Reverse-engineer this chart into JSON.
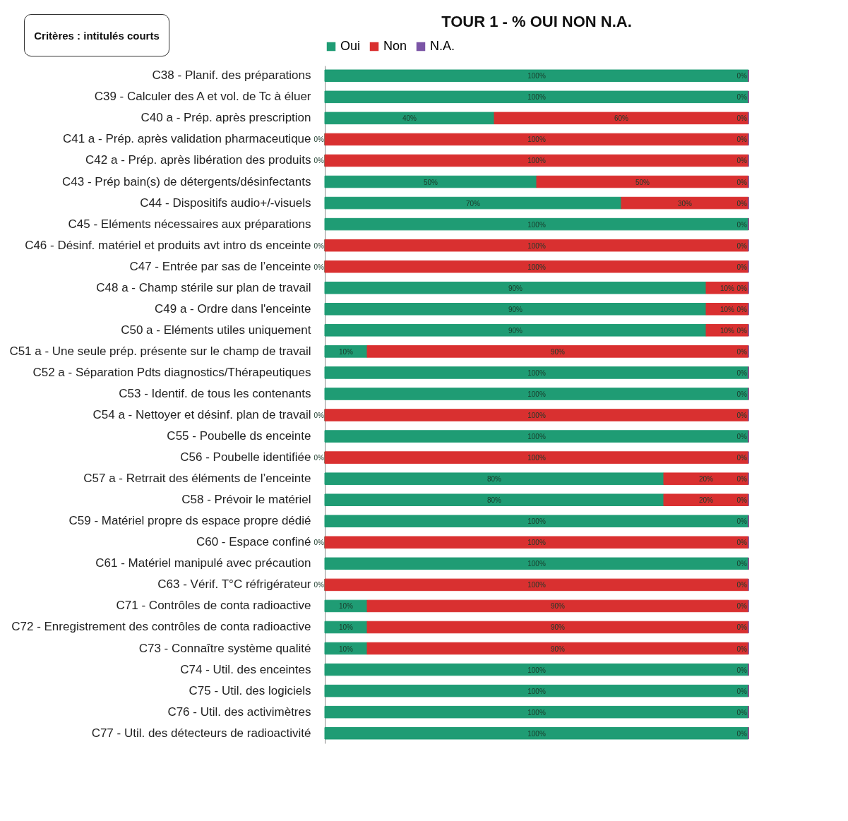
{
  "chart_data": {
    "type": "bar",
    "orientation": "horizontal",
    "stacked": true,
    "title": "TOUR 1  - % OUI NON N.A.",
    "annotations": [
      "Critères : intitulés courts"
    ],
    "legend": "top",
    "categories": [
      "C38 - Planif. des préparations",
      "C39 - Calculer des A et vol. de Tc à éluer",
      "C40 a - Prép. après prescription",
      "C41 a - Prép. après validation pharmaceutique",
      "C42 a - Prép. après libération des produits",
      "C43 - Prép bain(s) de détergents/désinfectants",
      "C44 - Dispositifs audio+/-visuels",
      "C45 - Eléments nécessaires aux préparations",
      "C46 - Désinf. matériel et produits avt intro ds enceinte",
      "C47 - Entrée par sas de l’enceinte",
      "C48 a - Champ stérile sur plan de travail",
      "C49 a - Ordre dans l'enceinte",
      "C50 a - Eléments utiles uniquement",
      "C51 a - Une seule prép. présente sur le champ de travail",
      "C52 a - Séparation Pdts diagnostics/Thérapeutiques",
      "C53 - Identif. de tous les contenants",
      "C54 a - Nettoyer et désinf. plan de travail",
      "C55 - Poubelle ds enceinte",
      "C56 - Poubelle identifiée",
      "C57 a - Retrrait des éléments de l’enceinte",
      "C58 - Prévoir le matériel",
      "C59 - Matériel propre ds espace propre dédié",
      "C60 - Espace confiné",
      "C61 - Matériel manipulé avec précaution",
      "C63 - Vérif. T°C réfrigérateur",
      "C71 - Contrôles de conta radioactive",
      "C72 - Enregistrement des contrôles de conta radioactive",
      "C73 - Connaître système qualité",
      "C74 - Util. des enceintes",
      "C75 - Util. des logiciels",
      "C76 - Util. des activimètres",
      "C77 - Util. des détecteurs de radioactivité"
    ],
    "series": [
      {
        "name": "Oui",
        "color": "#1f9c74",
        "values": [
          100,
          100,
          40,
          0,
          0,
          50,
          70,
          100,
          0,
          0,
          90,
          90,
          90,
          10,
          100,
          100,
          0,
          100,
          0,
          80,
          80,
          100,
          0,
          100,
          0,
          10,
          10,
          10,
          100,
          100,
          100,
          100
        ],
        "value_labels": [
          "100%",
          "100%",
          "40%",
          "0%",
          "0%",
          "50%",
          "70%",
          "100%",
          "0%",
          "0%",
          "90%",
          "90%",
          "90%",
          "10%",
          "100%",
          "100%",
          "0%",
          "100%",
          "0%",
          "80%",
          "80%",
          "100%",
          "0%",
          "100%",
          "0%",
          "10%",
          "10%",
          "10%",
          "100%",
          "100%",
          "100%",
          "100%"
        ]
      },
      {
        "name": "Non",
        "color": "#d93030",
        "values": [
          0,
          0,
          60,
          100,
          100,
          50,
          30,
          0,
          100,
          100,
          10,
          10,
          10,
          90,
          0,
          0,
          100,
          0,
          100,
          20,
          20,
          0,
          100,
          0,
          100,
          90,
          90,
          90,
          0,
          0,
          0,
          0
        ],
        "value_labels": [
          null,
          null,
          "60%",
          "100%",
          "100%",
          "50%",
          "30%",
          null,
          "100%",
          "100%",
          "10%",
          "10%",
          "10%",
          "90%",
          null,
          null,
          "100%",
          null,
          "100%",
          "20%",
          "20%",
          null,
          "100%",
          null,
          "100%",
          "90%",
          "90%",
          "90%",
          null,
          null,
          null,
          null
        ]
      },
      {
        "name": "N.A.",
        "color": "#7b55a6",
        "values": [
          0,
          0,
          0,
          0,
          0,
          0,
          0,
          0,
          0,
          0,
          0,
          0,
          0,
          0,
          0,
          0,
          0,
          0,
          0,
          0,
          0,
          0,
          0,
          0,
          0,
          0,
          0,
          0,
          0,
          0,
          0,
          0
        ],
        "value_labels": [
          "0%",
          "0%",
          "0%",
          "0%",
          "0%",
          "0%",
          "0%",
          "0%",
          "0%",
          "0%",
          "0%",
          "0%",
          "0%",
          "0%",
          "0%",
          "0%",
          "0%",
          "0%",
          "0%",
          "0%",
          "0%",
          "0%",
          "0%",
          "0%",
          "0%",
          "0%",
          "0%",
          "0%",
          "0%",
          "0%",
          "0%",
          "0%"
        ]
      }
    ]
  }
}
